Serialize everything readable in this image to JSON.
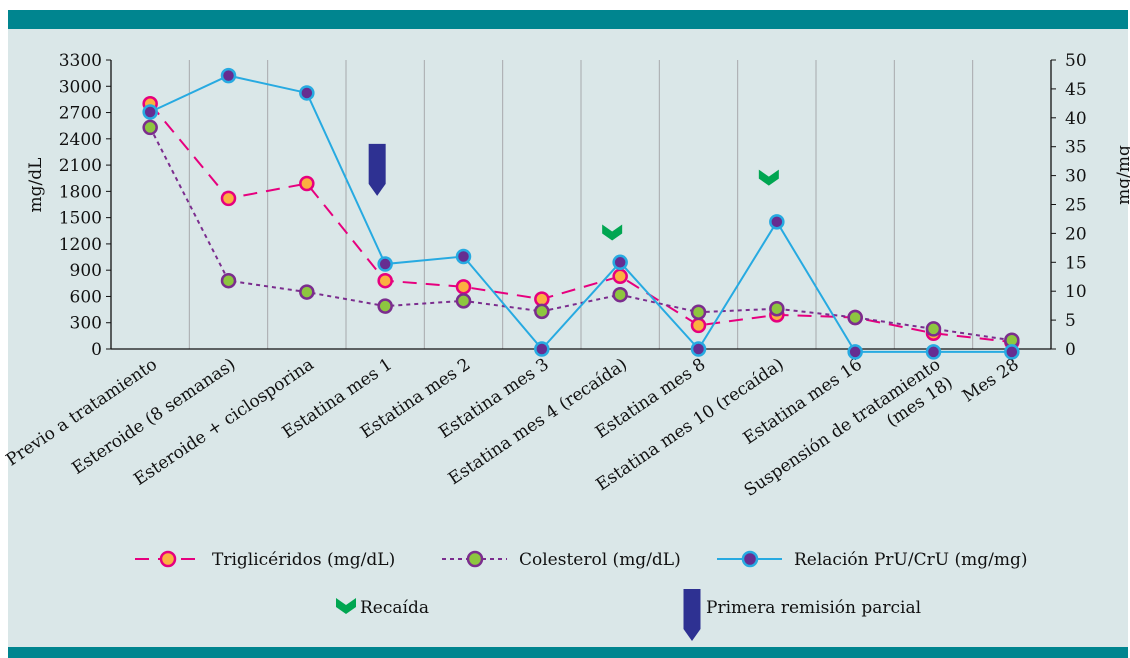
{
  "chart_data": {
    "type": "line",
    "categories": [
      "Previo a tratamiento",
      "Esteroide (8 semanas)",
      "Esteroide + ciclosporina",
      "Estatina mes 1",
      "Estatina mes 2",
      "Estatina mes 3",
      "Estatina mes 4 (recaída)",
      "Estatina mes 8",
      "Estatina mes 10 (recaída)",
      "Estatina mes 16",
      "Suspensión de tratamiento (mes 18)",
      "Mes 28"
    ],
    "ylabel": "mg/dL",
    "ylabel_right": "mg/mg",
    "ylim": [
      0,
      3300
    ],
    "yticks": [
      0,
      300,
      600,
      900,
      1200,
      1500,
      1800,
      2100,
      2400,
      2700,
      3000,
      3300
    ],
    "ylim_right": [
      0,
      50
    ],
    "yticks_right": [
      0,
      5,
      10,
      15,
      20,
      25,
      30,
      35,
      40,
      45,
      50
    ],
    "grid": "vertical lines",
    "legend_position": "bottom",
    "series": [
      {
        "name": "Triglicéridos (mg/dL)",
        "axis": "left",
        "style": "dashed",
        "line_color": "#e6007e",
        "marker_fill": "#fbb040",
        "marker_edge": "#e6007e",
        "values": [
          2800,
          1720,
          1890,
          780,
          710,
          570,
          830,
          270,
          390,
          360,
          180,
          80
        ]
      },
      {
        "name": "Colesterol (mg/dL)",
        "axis": "left",
        "style": "dotted",
        "line_color": "#7b2d8e",
        "marker_fill": "#8dc63f",
        "marker_edge": "#7b2d8e",
        "values": [
          2530,
          780,
          650,
          490,
          550,
          430,
          620,
          420,
          460,
          360,
          230,
          100
        ]
      },
      {
        "name": "Relación PrU/CrU (mg/mg)",
        "axis": "right",
        "style": "solid",
        "line_color": "#27aae1",
        "marker_fill": "#662d91",
        "marker_edge": "#27aae1",
        "values": [
          41,
          47.3,
          44.3,
          14.7,
          16,
          0,
          15,
          0,
          22,
          -0.5,
          -0.5,
          -0.5
        ]
      }
    ],
    "annotations": [
      {
        "type": "recaida",
        "category_index": 6,
        "level_right": 20.5,
        "color": "#00a651"
      },
      {
        "type": "recaida",
        "category_index": 8,
        "level_right": 30,
        "color": "#00a651"
      },
      {
        "type": "primera_remision_parcial",
        "category_index": 3,
        "level_right": 31,
        "color": "#2e3192"
      }
    ],
    "legend": {
      "recaida_label": "Recaída",
      "remision_label": "Primera remisión parcial"
    }
  }
}
